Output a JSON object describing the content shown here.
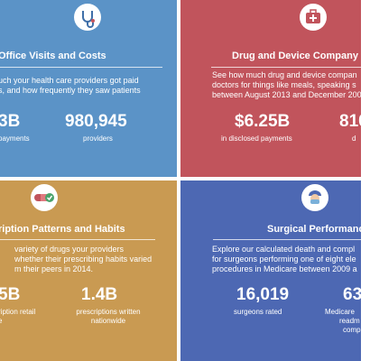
{
  "panels": {
    "visits": {
      "title": "Office Visits and Costs",
      "desc": [
        "uch your health care providers got paid",
        "s, and how frequently they saw patients"
      ],
      "stats": [
        {
          "value": "3B",
          "label": [
            "payments"
          ]
        },
        {
          "value": "980,945",
          "label": [
            "providers"
          ]
        }
      ]
    },
    "drug": {
      "title": "Drug and Device Company P",
      "desc": [
        "See how much drug and device compan",
        "doctors for things like meals, speaking s",
        "between August 2013 and December 200"
      ],
      "stats": [
        {
          "value": "$6.25B",
          "label": [
            "in disclosed payments"
          ]
        },
        {
          "value": "810",
          "label": [
            "d"
          ]
        }
      ]
    },
    "rx": {
      "title": "ription Patterns and Habits",
      "desc": [
        "variety of drugs your providers",
        "whether their prescribing habits varied",
        "m their peers in 2014."
      ],
      "stats": [
        {
          "value": "5B",
          "label": [
            "ription retail",
            "e"
          ]
        },
        {
          "value": "1.4B",
          "label": [
            "prescriptions written",
            "nationwide"
          ]
        }
      ]
    },
    "surg": {
      "title": "Surgical Performance",
      "desc": [
        "Explore our calculated death and compl",
        "for surgeons performing one of eight ele",
        "procedures in Medicare between 2009 a"
      ],
      "stats": [
        {
          "value": "16,019",
          "label": [
            "surgeons rated"
          ]
        },
        {
          "value": "63",
          "label": [
            "Medicare",
            "readm",
            "comp"
          ]
        }
      ]
    }
  },
  "icons": {
    "visits": "stethoscope-icon",
    "drug": "medical-kit-icon",
    "rx": "pill-capsule-icon",
    "surg": "surgeon-icon"
  },
  "colors": {
    "visits": "#5b93c7",
    "drug": "#c1545c",
    "rx": "#c99a52",
    "surg": "#4d68b3"
  }
}
